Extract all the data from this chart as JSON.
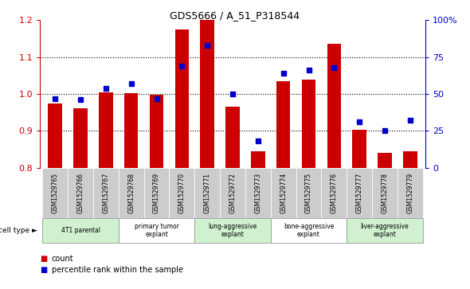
{
  "title": "GDS5666 / A_51_P318544",
  "samples": [
    "GSM1529765",
    "GSM1529766",
    "GSM1529767",
    "GSM1529768",
    "GSM1529769",
    "GSM1529770",
    "GSM1529771",
    "GSM1529772",
    "GSM1529773",
    "GSM1529774",
    "GSM1529775",
    "GSM1529776",
    "GSM1529777",
    "GSM1529778",
    "GSM1529779"
  ],
  "counts": [
    0.975,
    0.96,
    1.005,
    1.002,
    0.998,
    1.175,
    1.205,
    0.965,
    0.845,
    1.035,
    1.038,
    1.135,
    0.902,
    0.84,
    0.845
  ],
  "percentile_ranks": [
    47,
    46,
    54,
    57,
    47,
    69,
    83,
    50,
    18,
    64,
    66,
    68,
    31,
    25,
    32
  ],
  "bar_color": "#cc0000",
  "dot_color": "#0000cc",
  "ylim_left": [
    0.8,
    1.2
  ],
  "ylim_right": [
    0,
    100
  ],
  "yticks_left": [
    0.8,
    0.9,
    1.0,
    1.1,
    1.2
  ],
  "yticks_right": [
    0,
    25,
    50,
    75,
    100
  ],
  "cell_types": [
    {
      "label": "4T1 parental",
      "start": 0,
      "end": 2,
      "color": "#d0f0d0"
    },
    {
      "label": "primary tumor\nexplant",
      "start": 3,
      "end": 5,
      "color": "#ffffff"
    },
    {
      "label": "lung-aggressive\nexplant",
      "start": 6,
      "end": 8,
      "color": "#d0f0d0"
    },
    {
      "label": "bone-aggressive\nexplant",
      "start": 9,
      "end": 11,
      "color": "#ffffff"
    },
    {
      "label": "liver-aggressive\nexplant",
      "start": 12,
      "end": 14,
      "color": "#d0f0d0"
    }
  ],
  "legend_count_label": "count",
  "legend_percentile_label": "percentile rank within the sample",
  "sample_bg_color": "#cccccc",
  "plot_bg_color": "#ffffff",
  "left_axis_color": "#cc0000",
  "right_axis_color": "#0000cc"
}
